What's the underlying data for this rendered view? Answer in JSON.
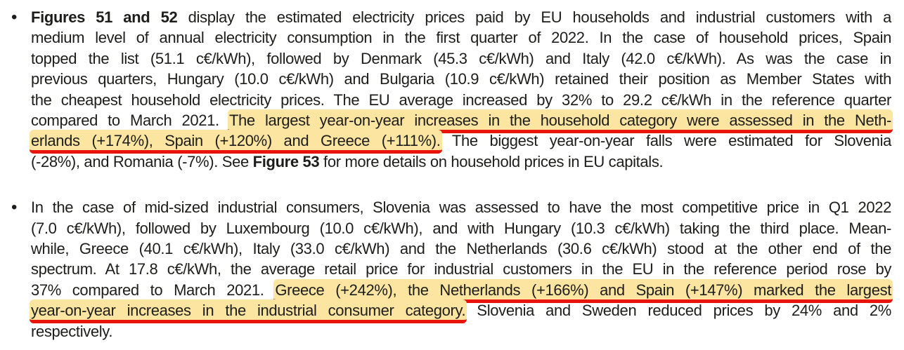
{
  "page": {
    "background_color": "#ffffff",
    "text_color": "#1d1d1b",
    "highlight_color": "#fbe5a1",
    "underline_color": "#e8130a"
  },
  "document": {
    "bullets": [
      {
        "marker": "•",
        "lines": [
          {
            "last": false,
            "segments": [
              {
                "text": "Figures 51 and 52",
                "bold": true
              },
              {
                "text": " display the estimated electricity prices paid by EU households and industrial customers with a"
              }
            ]
          },
          {
            "last": false,
            "segments": [
              {
                "text": "medium level of annual electricity consumption in the first quarter of 2022. In the case of household prices, Spain"
              }
            ]
          },
          {
            "last": false,
            "segments": [
              {
                "text": "topped the list (51.1 c€/kWh), followed by Denmark (45.3 c€/kWh) and Italy (42.0 c€/kWh). As was the case in"
              }
            ]
          },
          {
            "last": false,
            "segments": [
              {
                "text": "previous quarters, Hungary (10.0 c€/kWh) and Bulgaria (10.9 c€/kWh) retained their position as Member States with"
              }
            ]
          },
          {
            "last": false,
            "segments": [
              {
                "text": "the cheapest household electricity prices. The EU average increased by 32% to 29.2 c€/kWh in the reference quarter"
              }
            ]
          },
          {
            "last": false,
            "segments": [
              {
                "text": "compared to March 2021. "
              },
              {
                "text": "The largest year-on-year increases in the household category were assessed in the Neth-",
                "highlight": true,
                "underline": true
              }
            ]
          },
          {
            "last": false,
            "segments": [
              {
                "text": "erlands (+174%), Spain (+120%) and Greece (+111%).",
                "highlight": true,
                "underline": true
              },
              {
                "text": " The biggest year-on-year falls were estimated for Slovenia"
              }
            ]
          },
          {
            "last": true,
            "segments": [
              {
                "text": "(-28%), and Romania (-7%). See "
              },
              {
                "text": "Figure 53",
                "bold": true
              },
              {
                "text": " for more details on household prices in EU capitals."
              }
            ]
          }
        ]
      },
      {
        "marker": "•",
        "lines": [
          {
            "last": false,
            "segments": [
              {
                "text": "In the case of mid-sized industrial consumers, Slovenia was assessed to have the most competitive price in Q1 2022"
              }
            ]
          },
          {
            "last": false,
            "segments": [
              {
                "text": "(7.0 c€/kWh), followed by Luxembourg (10.0 c€/kWh), and with Hungary (10.3 c€/kWh) taking the third place. Mean-"
              }
            ]
          },
          {
            "last": false,
            "segments": [
              {
                "text": "while, Greece (40.1 c€/kWh), Italy (33.0 c€/kWh) and the Netherlands (30.6 c€/kWh) stood at the other end of the"
              }
            ]
          },
          {
            "last": false,
            "segments": [
              {
                "text": "spectrum. At 17.8 c€/kWh, the average retail price for industrial customers in the EU in the reference period rose by"
              }
            ]
          },
          {
            "last": false,
            "segments": [
              {
                "text": "37% compared to March 2021. "
              },
              {
                "text": "Greece (+242%), the Netherlands (+166%) and Spain (+147%) marked the largest",
                "highlight": true,
                "underline": true
              }
            ]
          },
          {
            "last": false,
            "segments": [
              {
                "text": "year-on-year increases in the industrial consumer category.",
                "highlight": true,
                "underline": true
              },
              {
                "text": " Slovenia and Sweden reduced prices by 24% and 2%"
              }
            ]
          },
          {
            "last": true,
            "segments": [
              {
                "text": "respectively."
              }
            ]
          }
        ]
      }
    ]
  }
}
